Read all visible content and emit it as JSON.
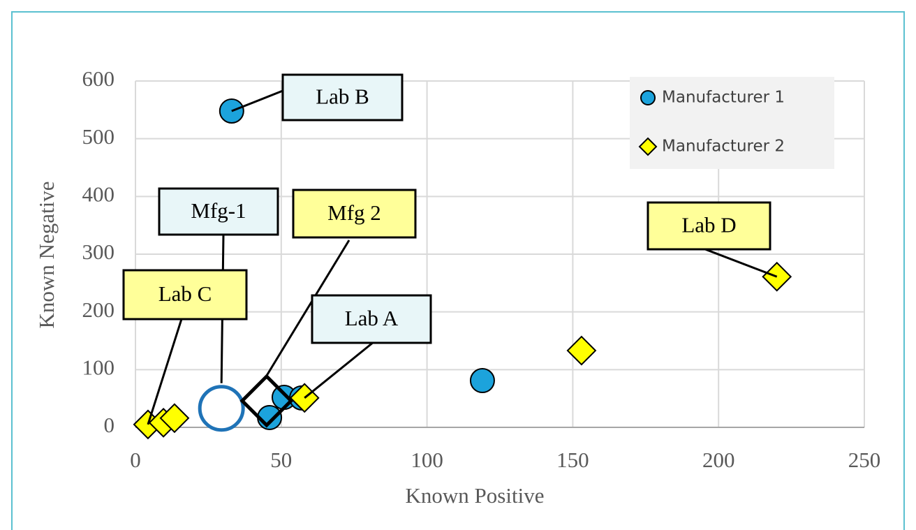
{
  "chart_data": {
    "type": "scatter",
    "x_label": "Known Positive",
    "y_label": "Known Negative",
    "xlim": [
      0,
      250
    ],
    "ylim": [
      0,
      600
    ],
    "xticks": [
      0,
      50,
      100,
      150,
      200,
      250
    ],
    "yticks": [
      0,
      100,
      200,
      300,
      400,
      500,
      600
    ],
    "grid": true,
    "legend": "upper right",
    "series": [
      {
        "name": "Manufacturer 1",
        "marker": "circle",
        "color": "#1ca3dc",
        "x": [
          33,
          46,
          51,
          57,
          119
        ],
        "values": [
          548,
          17,
          52,
          51,
          81
        ]
      },
      {
        "name": "Manufacturer 2",
        "marker": "diamond",
        "color": "#ffff00",
        "x": [
          4.3,
          9.6,
          13.4,
          58,
          153,
          220
        ],
        "values": [
          5,
          8,
          16,
          51,
          133,
          261
        ]
      }
    ],
    "references": [
      {
        "text": "Mfg-1",
        "marker": "circle",
        "color": "#1f73b7",
        "box": "#e8f6f8",
        "x": 29.5,
        "y": 33
      },
      {
        "text": "Mfg 2",
        "marker": "diamond",
        "color": "#000000",
        "box": "#ffff99",
        "x": 45,
        "y": 46
      }
    ],
    "annotations": [
      {
        "text": "Lab B",
        "box": "#e8f6f8",
        "x": 33,
        "y": 548
      },
      {
        "text": "Lab C",
        "box": "#ffff99",
        "x": 4.3,
        "y": 5
      },
      {
        "text": "Lab A",
        "box": "#e8f6f8",
        "x": 58,
        "y": 51
      },
      {
        "text": "Lab D",
        "box": "#ffff99",
        "x": 220,
        "y": 261
      }
    ]
  }
}
